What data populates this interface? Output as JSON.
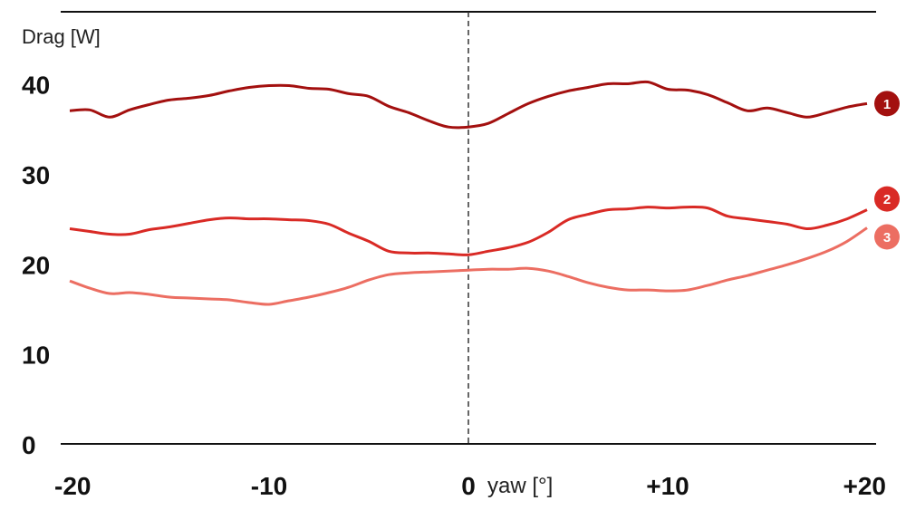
{
  "chart_data": {
    "type": "line",
    "ylabel": "Drag [W]",
    "xlabel": "yaw [°]",
    "xlim": [
      -20,
      20
    ],
    "ylim": [
      0,
      48
    ],
    "yticks": [
      0,
      10,
      20,
      30,
      40
    ],
    "xticks": [
      -20,
      -10,
      0,
      10,
      20
    ],
    "ytick_labels": [
      "0",
      "10",
      "20",
      "30",
      "40"
    ],
    "xtick_labels": [
      "-20",
      "-10",
      "0",
      "+10",
      "+20"
    ],
    "zero_line": true,
    "series": [
      {
        "name": "1",
        "color": "#a3100f",
        "x": [
          -20,
          -19,
          -18,
          -17,
          -16,
          -15,
          -14,
          -13,
          -12,
          -11,
          -10,
          -9,
          -8,
          -7,
          -6,
          -5,
          -4,
          -3,
          -2,
          -1,
          0,
          1,
          2,
          3,
          4,
          5,
          6,
          7,
          8,
          9,
          10,
          11,
          12,
          13,
          14,
          15,
          16,
          17,
          18,
          19,
          20
        ],
        "values": [
          37.0,
          37.1,
          36.3,
          37.1,
          37.7,
          38.2,
          38.4,
          38.7,
          39.2,
          39.6,
          39.8,
          39.8,
          39.5,
          39.4,
          38.9,
          38.6,
          37.5,
          36.8,
          35.9,
          35.2,
          35.2,
          35.6,
          36.7,
          37.8,
          38.6,
          39.2,
          39.6,
          40.0,
          40.0,
          40.2,
          39.4,
          39.3,
          38.8,
          37.9,
          37.0,
          37.3,
          36.8,
          36.3,
          36.8,
          37.4,
          37.8
        ]
      },
      {
        "name": "2",
        "color": "#d92a25",
        "x": [
          -20,
          -19,
          -18,
          -17,
          -16,
          -15,
          -14,
          -13,
          -12,
          -11,
          -10,
          -9,
          -8,
          -7,
          -6,
          -5,
          -4,
          -3,
          -2,
          -1,
          0,
          1,
          2,
          3,
          4,
          5,
          6,
          7,
          8,
          9,
          10,
          11,
          12,
          13,
          14,
          15,
          16,
          17,
          18,
          19,
          20
        ],
        "values": [
          23.9,
          23.6,
          23.3,
          23.3,
          23.8,
          24.1,
          24.5,
          24.9,
          25.1,
          25.0,
          25.0,
          24.9,
          24.8,
          24.4,
          23.4,
          22.5,
          21.4,
          21.2,
          21.2,
          21.1,
          21.0,
          21.4,
          21.8,
          22.4,
          23.5,
          24.9,
          25.5,
          26.0,
          26.1,
          26.3,
          26.2,
          26.3,
          26.2,
          25.3,
          25.0,
          24.7,
          24.4,
          23.9,
          24.3,
          25.0,
          26.0
        ]
      },
      {
        "name": "3",
        "color": "#ec6e62",
        "x": [
          -20,
          -19,
          -18,
          -17,
          -16,
          -15,
          -14,
          -13,
          -12,
          -11,
          -10,
          -9,
          -8,
          -7,
          -6,
          -5,
          -4,
          -3,
          -2,
          -1,
          0,
          1,
          2,
          3,
          4,
          5,
          6,
          7,
          8,
          9,
          10,
          11,
          12,
          13,
          14,
          15,
          16,
          17,
          18,
          19,
          20
        ],
        "values": [
          18.1,
          17.3,
          16.7,
          16.8,
          16.6,
          16.3,
          16.2,
          16.1,
          16.0,
          15.7,
          15.5,
          15.9,
          16.3,
          16.8,
          17.4,
          18.2,
          18.8,
          19.0,
          19.1,
          19.2,
          19.3,
          19.4,
          19.4,
          19.5,
          19.2,
          18.6,
          17.9,
          17.4,
          17.1,
          17.1,
          17.0,
          17.1,
          17.6,
          18.2,
          18.7,
          19.3,
          19.9,
          20.6,
          21.4,
          22.5,
          24.0
        ]
      }
    ]
  }
}
